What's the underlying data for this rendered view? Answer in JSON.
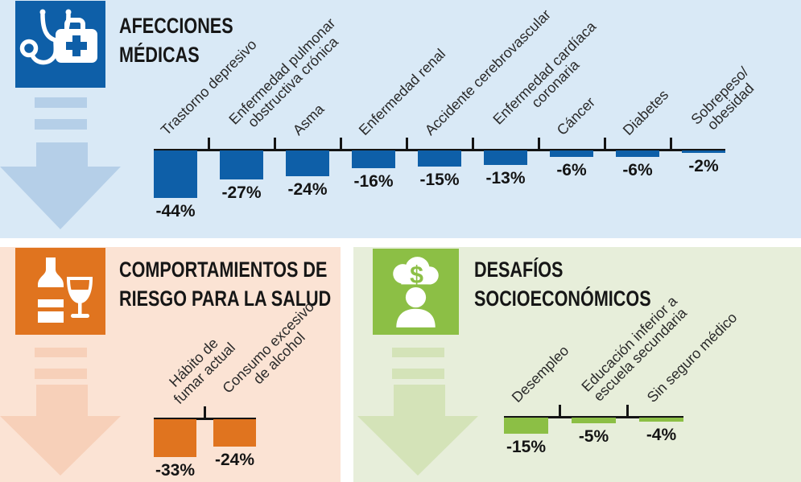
{
  "panels": {
    "medical": {
      "title_lines": [
        "AFECCIONES",
        "MÉDICAS"
      ],
      "icon": "medical-kit-stethoscope-icon",
      "colors": {
        "bg": "#d9e9f6",
        "accent": "#0e5fa8",
        "arrow": "#b5cfe8"
      }
    },
    "behaviors": {
      "title_lines": [
        "COMPORTAMIENTOS DE",
        "RIESGO PARA LA SALUD"
      ],
      "icon": "alcohol-bottle-glass-icon",
      "colors": {
        "bg": "#fbe3d4",
        "accent": "#e0741f",
        "arrow": "#f7d0b9"
      }
    },
    "socioeconomic": {
      "title_lines": [
        "DESAFÍOS",
        "SOCIOECONÓMICOS"
      ],
      "icon": "money-cloud-person-icon",
      "colors": {
        "bg": "#e7eeda",
        "accent": "#8cbf45",
        "arrow": "#d4e3b8"
      }
    }
  },
  "chart_data": [
    {
      "panel": "medical",
      "type": "bar",
      "title": "AFECCIONES MÉDICAS",
      "categories": [
        "Trastorno depresivo",
        "Enfermedad pulmonar obstructiva crónica",
        "Asma",
        "Enfermedad renal",
        "Accidente cerebrovascular",
        "Enfermedad cardíaca coronaria",
        "Cáncer",
        "Diabetes",
        "Sobrepeso/obesidad"
      ],
      "category_lines": [
        [
          "Trastorno depresivo"
        ],
        [
          "Enfermedad pulmonar",
          "obstructiva crónica"
        ],
        [
          "Asma"
        ],
        [
          "Enfermedad renal"
        ],
        [
          "Accidente cerebrovascular"
        ],
        [
          "Enfermedad cardíaca",
          "coronaria"
        ],
        [
          "Cáncer"
        ],
        [
          "Diabetes"
        ],
        [
          "Sobrepeso/",
          "obesidad"
        ]
      ],
      "values": [
        -44,
        -27,
        -24,
        -16,
        -15,
        -13,
        -6,
        -6,
        -2
      ],
      "value_labels": [
        "-44%",
        "-27%",
        "-24%",
        "-16%",
        "-15%",
        "-13%",
        "-6%",
        "-6%",
        "-2%"
      ],
      "unit": "%",
      "bar_direction": "down-from-baseline",
      "grid": "none",
      "bar_color": "#0e5fa8"
    },
    {
      "panel": "behaviors",
      "type": "bar",
      "title": "COMPORTAMIENTOS DE RIESGO PARA LA SALUD",
      "categories": [
        "Hábito de fumar actual",
        "Consumo excesivo de alcohol"
      ],
      "category_lines": [
        [
          "Hábito de",
          "fumar actual"
        ],
        [
          "Consumo excesivo",
          "de alcohol"
        ]
      ],
      "values": [
        -33,
        -24
      ],
      "value_labels": [
        "-33%",
        "-24%"
      ],
      "unit": "%",
      "bar_direction": "down-from-baseline",
      "grid": "none",
      "bar_color": "#e0741f"
    },
    {
      "panel": "socioeconomic",
      "type": "bar",
      "title": "DESAFÍOS SOCIOECONÓMICOS",
      "categories": [
        "Desempleo",
        "Educación inferior a escuela secundaria",
        "Sin seguro médico"
      ],
      "category_lines": [
        [
          "Desempleo"
        ],
        [
          "Educación inferior a",
          "escuela secundaria"
        ],
        [
          "Sin seguro médico"
        ]
      ],
      "values": [
        -15,
        -5,
        -4
      ],
      "value_labels": [
        "-15%",
        "-5%",
        "-4%"
      ],
      "unit": "%",
      "bar_direction": "down-from-baseline",
      "grid": "none",
      "bar_color": "#8cbf45"
    }
  ]
}
